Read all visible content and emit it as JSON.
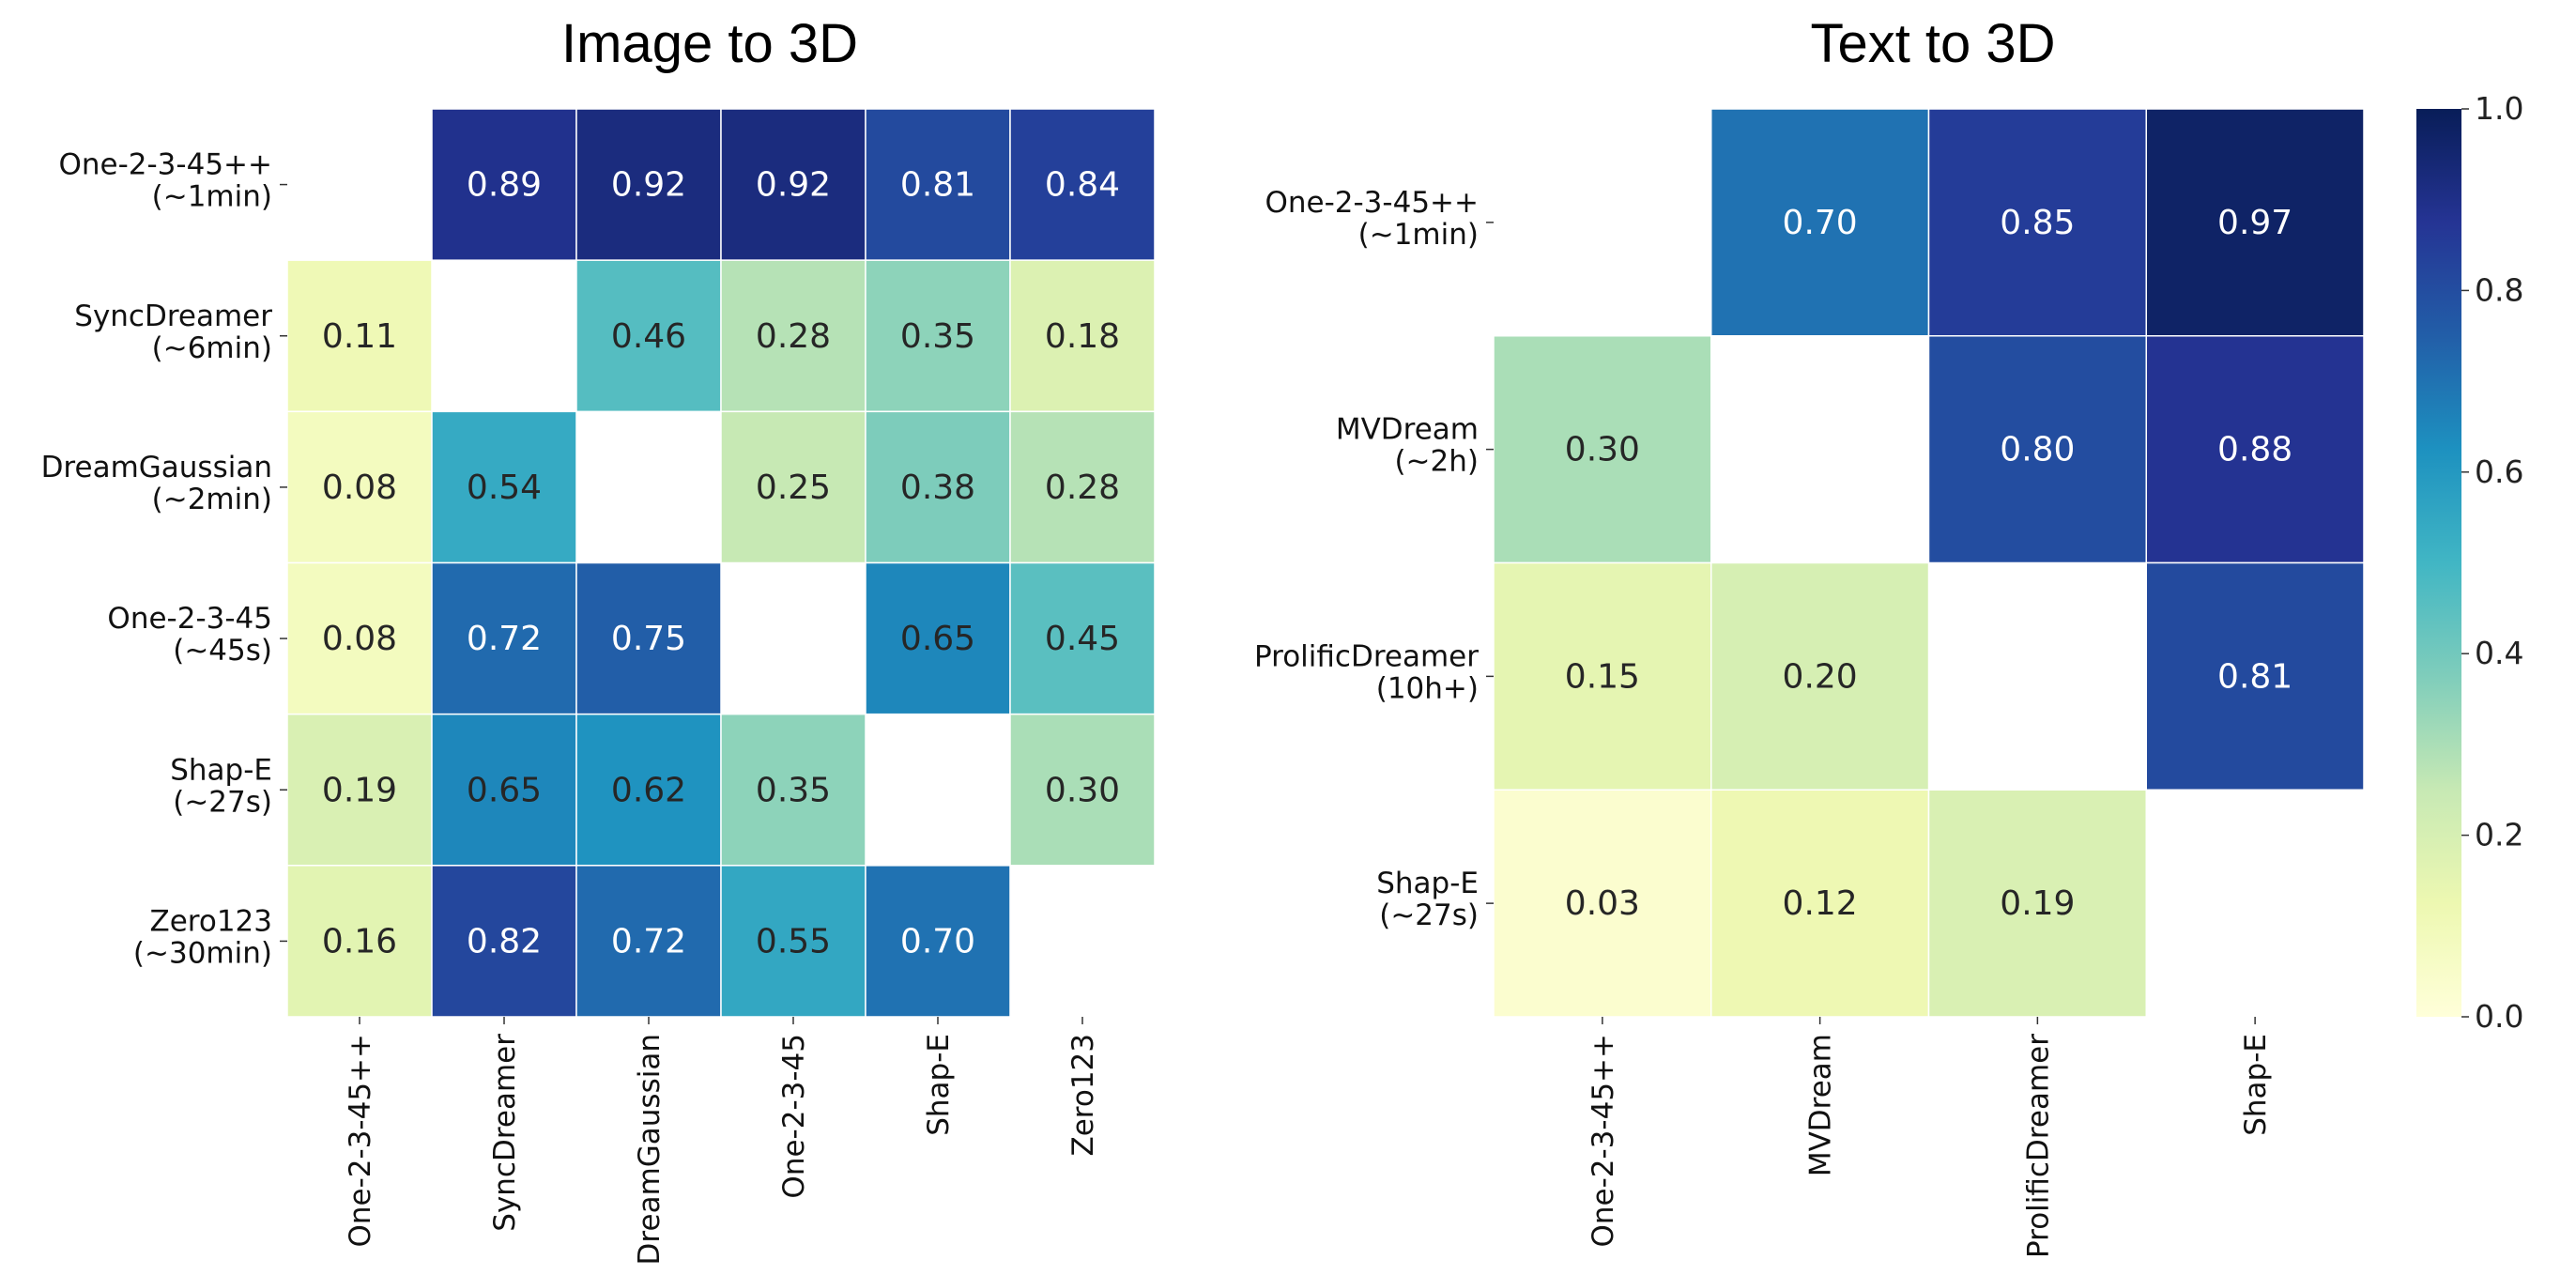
{
  "chart_data": [
    {
      "type": "heatmap",
      "title": "Image to 3D",
      "row_labels": [
        [
          "One-2-3-45++",
          "(~1min)"
        ],
        [
          "SyncDreamer",
          "(~6min)"
        ],
        [
          "DreamGaussian",
          "(~2min)"
        ],
        [
          "One-2-3-45",
          "(~45s)"
        ],
        [
          "Shap-E",
          "(~27s)"
        ],
        [
          "Zero123",
          "(~30min)"
        ]
      ],
      "col_labels": [
        "One-2-3-45++",
        "SyncDreamer",
        "DreamGaussian",
        "One-2-3-45",
        "Shap-E",
        "Zero123"
      ],
      "values": [
        [
          null,
          0.89,
          0.92,
          0.92,
          0.81,
          0.84
        ],
        [
          0.11,
          null,
          0.46,
          0.28,
          0.35,
          0.18
        ],
        [
          0.08,
          0.54,
          null,
          0.25,
          0.38,
          0.28
        ],
        [
          0.08,
          0.72,
          0.75,
          null,
          0.65,
          0.45
        ],
        [
          0.19,
          0.65,
          0.62,
          0.35,
          null,
          0.3
        ],
        [
          0.16,
          0.82,
          0.72,
          0.55,
          0.7,
          null
        ]
      ]
    },
    {
      "type": "heatmap",
      "title": "Text to 3D",
      "row_labels": [
        [
          "One-2-3-45++",
          "(~1min)"
        ],
        [
          "MVDream",
          "(~2h)"
        ],
        [
          "ProlificDreamer",
          "(10h+)"
        ],
        [
          "Shap-E",
          "(~27s)"
        ]
      ],
      "col_labels": [
        "One-2-3-45++",
        "MVDream",
        "ProlificDreamer",
        "Shap-E"
      ],
      "values": [
        [
          null,
          0.7,
          0.85,
          0.97
        ],
        [
          0.3,
          null,
          0.8,
          0.88
        ],
        [
          0.15,
          0.2,
          null,
          0.81
        ],
        [
          0.03,
          0.12,
          0.19,
          null
        ]
      ]
    }
  ],
  "colorbar": {
    "colormap": "YlGnBu",
    "range": [
      0.0,
      1.0
    ],
    "ticks": [
      "0.0",
      "0.2",
      "0.4",
      "0.6",
      "0.8",
      "1.0"
    ]
  }
}
